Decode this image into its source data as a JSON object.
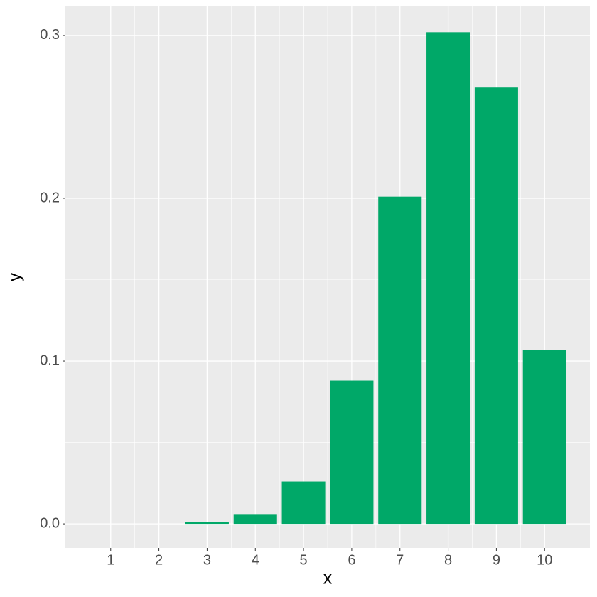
{
  "chart_data": {
    "type": "bar",
    "x_label": "x",
    "y_label": "y",
    "x": [
      1,
      2,
      3,
      4,
      5,
      6,
      7,
      8,
      9,
      10
    ],
    "values": [
      0,
      0,
      0.001,
      0.006,
      0.026,
      0.088,
      0.201,
      0.302,
      0.268,
      0.107
    ],
    "color": "#00a868",
    "xlim": [
      0.06,
      10.94
    ],
    "xticks": [
      1,
      2,
      3,
      4,
      5,
      6,
      7,
      8,
      9,
      10
    ],
    "ylim": [
      -0.0148,
      0.3183
    ],
    "yticks": [
      {
        "value": 0,
        "label": "0.0"
      },
      0.1,
      0.2,
      0.3
    ],
    "grid": true
  }
}
